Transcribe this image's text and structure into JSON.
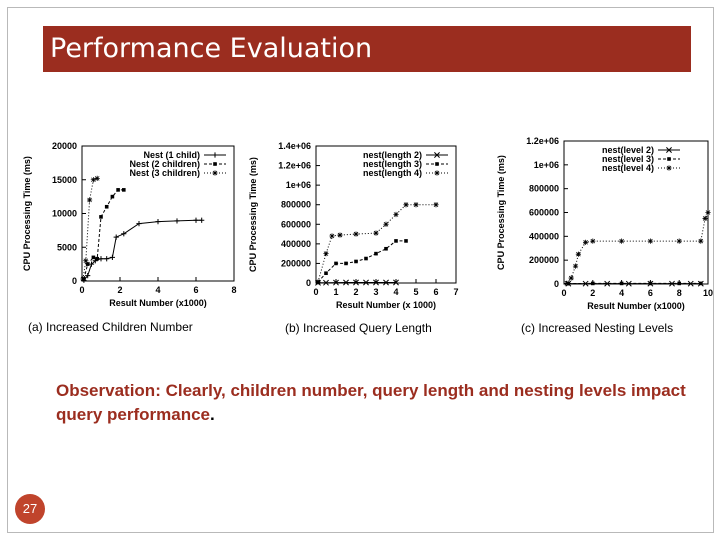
{
  "slide": {
    "title": "Performance Evaluation",
    "observation_text": "Observation: Clearly, children number, query length and nesting levels impact query performance",
    "observation_end": ".",
    "page_number": "27",
    "colors": {
      "title_bar": "#9b2d1f",
      "observation_text": "#9b2d1f",
      "page_badge": "#c0442c"
    }
  },
  "chart_data": [
    {
      "type": "line",
      "caption": "(a) Increased Children Number",
      "xlabel": "Result Number (x1000)",
      "ylabel": "CPU Processing Time (ms)",
      "xlim": [
        0,
        8
      ],
      "ylim": [
        0,
        20000
      ],
      "xticks": [
        "0",
        "2",
        "4",
        "6",
        "8"
      ],
      "yticks": [
        "0",
        "5000",
        "10000",
        "15000",
        "20000"
      ],
      "legend_position": "top-right",
      "series": [
        {
          "name": "Nest (1 child)",
          "marker": "plus",
          "x": [
            0.1,
            0.3,
            0.5,
            0.7,
            1.0,
            1.3,
            1.6,
            1.8,
            2.2,
            3.0,
            4.0,
            5.0,
            6.0,
            6.3
          ],
          "y": [
            100,
            800,
            2500,
            3000,
            3300,
            3300,
            3500,
            6500,
            7000,
            8500,
            8800,
            8900,
            9000,
            9000
          ]
        },
        {
          "name": "Nest (2 children)",
          "marker": "square",
          "x": [
            0.1,
            0.3,
            0.6,
            0.8,
            1.0,
            1.3,
            1.6,
            1.9,
            2.2
          ],
          "y": [
            300,
            2500,
            3500,
            3300,
            9500,
            11000,
            12500,
            13500,
            13500
          ]
        },
        {
          "name": "Nest (3 children)",
          "marker": "star",
          "x": [
            0.05,
            0.2,
            0.4,
            0.6,
            0.8
          ],
          "y": [
            300,
            3000,
            12000,
            15000,
            15200
          ]
        }
      ]
    },
    {
      "type": "line",
      "caption": "(b) Increased Query Length",
      "xlabel": "Result Number (x 1000)",
      "ylabel": "CPU Processing Time (ms)",
      "xlim": [
        0,
        7
      ],
      "ylim": [
        0,
        1400000
      ],
      "xticks": [
        "0",
        "1",
        "2",
        "3",
        "4",
        "5",
        "6",
        "7"
      ],
      "yticks": [
        "0",
        "200000",
        "400000",
        "600000",
        "800000",
        "1e+06",
        "1.2e+06",
        "1.4e+06"
      ],
      "legend_position": "top-right",
      "series": [
        {
          "name": "nest(length 2)",
          "marker": "x",
          "x": [
            0.1,
            0.5,
            1.0,
            1.5,
            2.0,
            2.5,
            3.0,
            3.5,
            4.0
          ],
          "y": [
            2000,
            3000,
            4000,
            5000,
            5000,
            5000,
            5000,
            5000,
            5000
          ]
        },
        {
          "name": "nest(length 3)",
          "marker": "square",
          "x": [
            0.1,
            0.5,
            1.0,
            1.5,
            2.0,
            2.5,
            3.0,
            3.5,
            4.0,
            4.5
          ],
          "y": [
            10000,
            100000,
            200000,
            200000,
            220000,
            250000,
            300000,
            350000,
            430000,
            430000
          ]
        },
        {
          "name": "nest(length 4)",
          "marker": "star",
          "x": [
            0.1,
            0.5,
            0.8,
            1.2,
            2.0,
            3.0,
            3.5,
            4.0,
            4.5,
            5.0,
            6.0
          ],
          "y": [
            10000,
            300000,
            480000,
            490000,
            500000,
            510000,
            600000,
            700000,
            800000,
            800000,
            800000
          ]
        }
      ]
    },
    {
      "type": "line",
      "caption": "(c) Increased Nesting Levels",
      "xlabel": "Result Number (x1000)",
      "ylabel": "CPU Processing Time (ms)",
      "xlim": [
        0,
        10
      ],
      "ylim": [
        0,
        1200000
      ],
      "xticks": [
        "0",
        "2",
        "4",
        "6",
        "8",
        "10"
      ],
      "yticks": [
        "0",
        "200000",
        "400000",
        "600000",
        "800000",
        "1e+06",
        "1.2e+06"
      ],
      "legend_position": "top-right",
      "series": [
        {
          "name": "nest(level 2)",
          "marker": "x",
          "x": [
            0.3,
            1.5,
            3.0,
            4.5,
            6.0,
            7.5,
            8.8,
            9.5
          ],
          "y": [
            3000,
            3000,
            3000,
            3000,
            3000,
            3000,
            3000,
            3000
          ]
        },
        {
          "name": "nest(level 3)",
          "marker": "square",
          "x": [
            0.3,
            2.0,
            4.0,
            6.0,
            8.0,
            9.5
          ],
          "y": [
            4000,
            5000,
            5000,
            5000,
            5000,
            5000
          ]
        },
        {
          "name": "nest(level 4)",
          "marker": "star",
          "x": [
            0.2,
            0.5,
            0.8,
            1.0,
            1.5,
            2.0,
            4.0,
            6.0,
            8.0,
            9.5,
            9.8,
            10.0
          ],
          "y": [
            5000,
            50000,
            150000,
            250000,
            350000,
            360000,
            360000,
            360000,
            360000,
            360000,
            550000,
            600000
          ]
        }
      ]
    }
  ]
}
